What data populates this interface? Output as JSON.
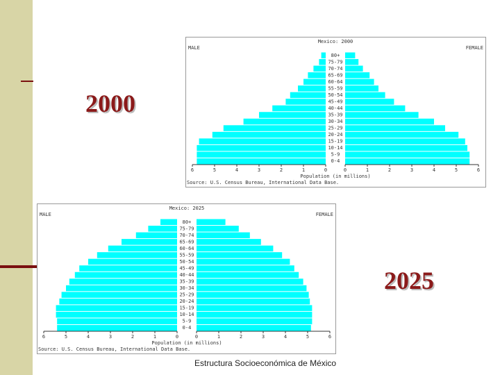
{
  "slide": {
    "label_2000": "2000",
    "label_2025": "2025",
    "caption": "Estructura Socioeconómica de México"
  },
  "chart_data": [
    {
      "type": "pyramid",
      "title": "Mexico: 2000",
      "left_label": "MALE",
      "right_label": "FEMALE",
      "x_label": "Population (in millions)",
      "source": "Source: U.S. Census Bureau, International Data Base.",
      "categories": [
        "0-4",
        "5-9",
        "10-14",
        "15-19",
        "20-24",
        "25-29",
        "30-34",
        "35-39",
        "40-44",
        "45-49",
        "50-54",
        "55-59",
        "60-64",
        "65-69",
        "70-74",
        "75-79",
        "80+"
      ],
      "series": [
        {
          "name": "Male",
          "color": "#00ffff",
          "values": [
            5.8,
            5.8,
            5.8,
            5.7,
            5.1,
            4.6,
            3.7,
            3.0,
            2.4,
            1.8,
            1.6,
            1.25,
            1.0,
            0.8,
            0.55,
            0.3,
            0.2
          ]
        },
        {
          "name": "Female",
          "color": "#00ffff",
          "values": [
            5.6,
            5.6,
            5.5,
            5.4,
            5.1,
            4.5,
            4.0,
            3.3,
            2.7,
            2.2,
            1.8,
            1.5,
            1.3,
            1.1,
            0.8,
            0.6,
            0.45
          ]
        }
      ],
      "xlim": [
        0,
        6
      ],
      "xticks": [
        0,
        1,
        2,
        3,
        4,
        5,
        6
      ]
    },
    {
      "type": "pyramid",
      "title": "Mexico: 2025",
      "left_label": "MALE",
      "right_label": "FEMALE",
      "x_label": "Population (in millions)",
      "source": "Source: U.S. Census Bureau, International Data Base.",
      "categories": [
        "0-4",
        "5-9",
        "10-14",
        "15-19",
        "20-24",
        "25-29",
        "30-34",
        "35-39",
        "40-44",
        "45-49",
        "50-54",
        "55-59",
        "60-64",
        "65-69",
        "70-74",
        "75-79",
        "80+"
      ],
      "series": [
        {
          "name": "Male",
          "color": "#00ffff",
          "values": [
            5.4,
            5.4,
            5.45,
            5.45,
            5.3,
            5.2,
            5.0,
            4.85,
            4.6,
            4.4,
            4.0,
            3.6,
            3.1,
            2.5,
            1.85,
            1.3,
            0.75
          ]
        },
        {
          "name": "Female",
          "color": "#00ffff",
          "values": [
            5.15,
            5.2,
            5.2,
            5.2,
            5.1,
            5.05,
            4.95,
            4.8,
            4.6,
            4.4,
            4.2,
            3.85,
            3.45,
            2.9,
            2.4,
            1.9,
            1.3
          ]
        }
      ],
      "xlim": [
        0,
        6
      ],
      "xticks": [
        0,
        1,
        2,
        3,
        4,
        5,
        6
      ]
    }
  ]
}
